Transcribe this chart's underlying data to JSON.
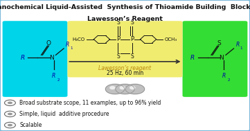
{
  "title_line1": "Mechanochemical Liquid-Assisted  Synthesis of Thioamide Building  Blocks with",
  "title_line2": "Lawesson’s Reagent",
  "title_fontsize": 6.8,
  "bg_color": "#ffffff",
  "border_color": "#7ab8d8",
  "cyan_box_color": "#00d4e8",
  "green_box_color": "#33dd33",
  "yellow_box_color": "#f0ec70",
  "bullet_points": [
    "Broad substrate scope, 11 examples, up to 96% yield",
    "Simple, liquid  additive procedure",
    "Scalable"
  ],
  "bullet_fontsize": 5.5,
  "lawesson_label": "Lawesson’s reagent",
  "condition_label": "25 Hz, 60 min",
  "arrow_color": "#333333",
  "text_color": "#111111",
  "struct_color": "#111111",
  "blue_color": "#0000aa",
  "gold_color": "#b8860b"
}
